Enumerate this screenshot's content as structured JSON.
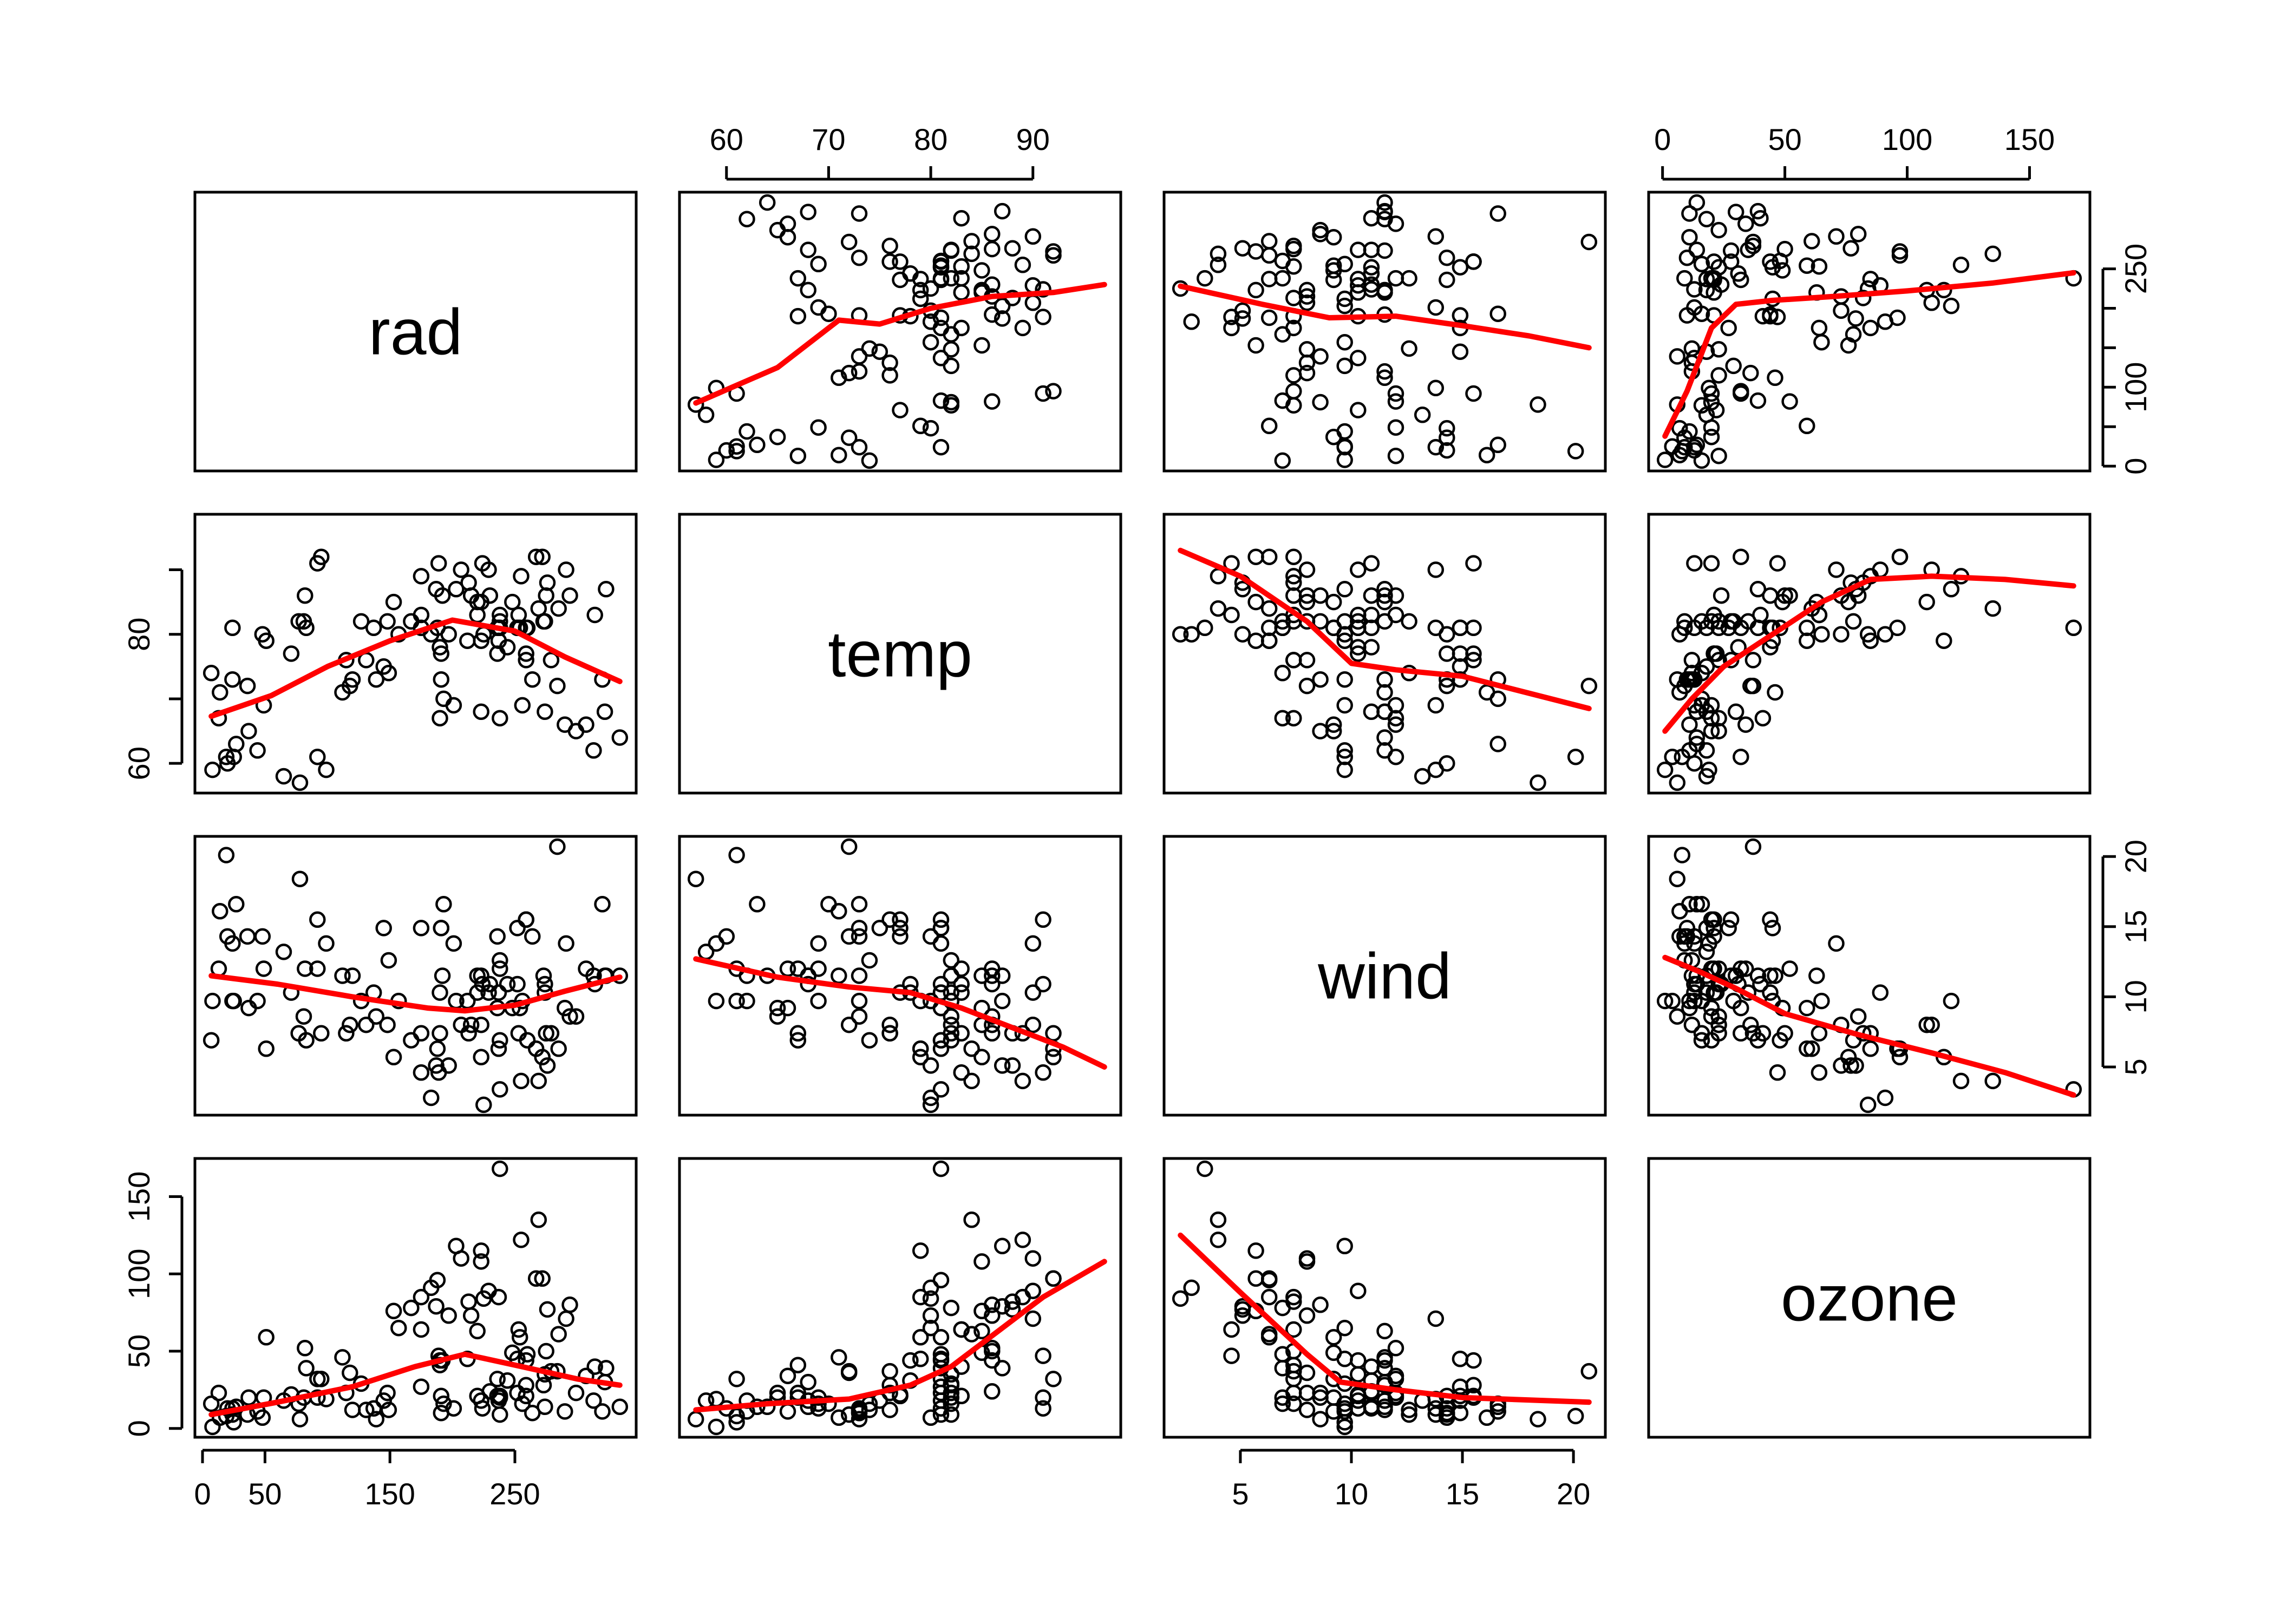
{
  "chart_data": {
    "type": "scatter",
    "subtype": "scatterplot-matrix",
    "title": "",
    "variables": [
      "rad",
      "temp",
      "wind",
      "ozone"
    ],
    "smoother": "lowess",
    "smoother_color": "#ff0000",
    "point_style": "open-circle",
    "ranges": {
      "rad": [
        7,
        334
      ],
      "temp": [
        57,
        97
      ],
      "wind": [
        2.3,
        20.7
      ],
      "ozone": [
        1,
        168
      ]
    },
    "ticks": {
      "rad": [
        0,
        50,
        150,
        250
      ],
      "temp": [
        60,
        70,
        80,
        90
      ],
      "wind": [
        5,
        10,
        15,
        20
      ],
      "ozone": [
        0,
        50,
        100,
        150
      ]
    },
    "panel_ticks": {
      "rad_temp": [
        60,
        80
      ],
      "ozone_rad": [
        0,
        100,
        250
      ]
    },
    "axis_placement": {
      "rad": {
        "x": "bottom",
        "y": "right"
      },
      "temp": {
        "x": "top",
        "y": "left"
      },
      "wind": {
        "x": "bottom",
        "y": "right"
      },
      "ozone": {
        "x": "top",
        "y": "left"
      }
    },
    "data": [
      [
        190,
        67,
        7.4,
        41
      ],
      [
        118,
        72,
        8.0,
        36
      ],
      [
        149,
        74,
        12.6,
        12
      ],
      [
        313,
        62,
        11.5,
        18
      ],
      [
        299,
        65,
        8.6,
        23
      ],
      [
        99,
        59,
        13.8,
        19
      ],
      [
        19,
        61,
        20.1,
        8
      ],
      [
        256,
        69,
        9.7,
        16
      ],
      [
        290,
        66,
        9.2,
        11
      ],
      [
        274,
        68,
        10.9,
        14
      ],
      [
        65,
        58,
        13.2,
        18
      ],
      [
        334,
        64,
        11.5,
        14
      ],
      [
        307,
        66,
        12.0,
        34
      ],
      [
        78,
        57,
        18.4,
        6
      ],
      [
        322,
        68,
        11.5,
        30
      ],
      [
        44,
        62,
        9.7,
        11
      ],
      [
        8,
        59,
        9.7,
        1
      ],
      [
        320,
        73,
        16.6,
        11
      ],
      [
        25,
        61,
        9.7,
        4
      ],
      [
        92,
        61,
        12.0,
        32
      ],
      [
        13,
        67,
        12.0,
        23
      ],
      [
        252,
        81,
        14.9,
        45
      ],
      [
        223,
        79,
        5.7,
        115
      ],
      [
        279,
        76,
        7.4,
        37
      ],
      [
        127,
        82,
        9.7,
        29
      ],
      [
        291,
        90,
        13.8,
        71
      ],
      [
        323,
        87,
        11.5,
        39
      ],
      [
        148,
        82,
        8.0,
        23
      ],
      [
        191,
        77,
        14.9,
        21
      ],
      [
        284,
        72,
        20.7,
        37
      ],
      [
        37,
        65,
        9.2,
        20
      ],
      [
        120,
        73,
        11.5,
        12
      ],
      [
        137,
        81,
        10.3,
        13
      ],
      [
        269,
        84,
        4.0,
        135
      ],
      [
        248,
        85,
        9.2,
        49
      ],
      [
        236,
        81,
        9.2,
        32
      ],
      [
        175,
        83,
        4.6,
        64
      ],
      [
        314,
        83,
        10.9,
        40
      ],
      [
        276,
        88,
        5.1,
        77
      ],
      [
        267,
        92,
        6.3,
        97
      ],
      [
        272,
        92,
        5.7,
        97
      ],
      [
        175,
        89,
        7.4,
        85
      ],
      [
        264,
        73,
        14.3,
        10
      ],
      [
        175,
        81,
        14.9,
        27
      ],
      [
        48,
        80,
        14.3,
        7
      ],
      [
        260,
        81,
        6.9,
        48
      ],
      [
        274,
        82,
        10.3,
        35
      ],
      [
        285,
        84,
        6.3,
        61
      ],
      [
        187,
        87,
        5.1,
        79
      ],
      [
        220,
        85,
        11.5,
        63
      ],
      [
        7,
        74,
        6.9,
        16
      ],
      [
        294,
        86,
        8.6,
        80
      ],
      [
        223,
        85,
        8.0,
        108
      ],
      [
        81,
        82,
        8.6,
        20
      ],
      [
        82,
        86,
        12.0,
        52
      ],
      [
        213,
        88,
        7.4,
        82
      ],
      [
        275,
        86,
        7.4,
        50
      ],
      [
        253,
        83,
        7.4,
        64
      ],
      [
        254,
        81,
        9.2,
        59
      ],
      [
        83,
        81,
        6.9,
        39
      ],
      [
        24,
        81,
        13.8,
        9
      ],
      [
        77,
        82,
        7.4,
        16
      ],
      [
        255,
        89,
        4.0,
        122
      ],
      [
        229,
        90,
        10.3,
        89
      ],
      [
        207,
        90,
        8.0,
        110
      ],
      [
        192,
        86,
        11.5,
        44
      ],
      [
        273,
        82,
        11.5,
        28
      ],
      [
        157,
        80,
        9.7,
        65
      ],
      [
        71,
        77,
        10.3,
        22
      ],
      [
        51,
        79,
        6.3,
        59
      ],
      [
        115,
        76,
        7.4,
        23
      ],
      [
        244,
        78,
        10.9,
        31
      ],
      [
        190,
        78,
        10.3,
        44
      ],
      [
        259,
        77,
        15.5,
        21
      ],
      [
        36,
        72,
        14.3,
        9
      ],
      [
        212,
        79,
        9.7,
        45
      ],
      [
        238,
        81,
        3.4,
        168
      ],
      [
        215,
        86,
        8.0,
        73
      ],
      [
        153,
        85,
        5.7,
        76
      ],
      [
        203,
        87,
        9.7,
        118
      ],
      [
        225,
        80,
        2.3,
        84
      ],
      [
        237,
        79,
        6.3,
        85
      ],
      [
        188,
        81,
        6.3,
        96
      ],
      [
        167,
        82,
        6.9,
        78
      ],
      [
        197,
        80,
        5.1,
        73
      ],
      [
        183,
        80,
        2.8,
        91
      ],
      [
        189,
        91,
        4.6,
        47
      ],
      [
        95,
        92,
        7.4,
        32
      ],
      [
        92,
        91,
        15.5,
        20
      ],
      [
        252,
        81,
        10.9,
        23
      ],
      [
        220,
        83,
        10.3,
        21
      ],
      [
        230,
        86,
        10.9,
        24
      ],
      [
        259,
        81,
        15.5,
        44
      ],
      [
        236,
        77,
        14.3,
        21
      ],
      [
        259,
        76,
        15.5,
        28
      ],
      [
        238,
        82,
        12.6,
        9
      ],
      [
        24,
        73,
        9.7,
        13
      ],
      [
        112,
        71,
        11.5,
        46
      ],
      [
        237,
        81,
        10.3,
        18
      ],
      [
        224,
        91,
        10.9,
        13
      ],
      [
        27,
        63,
        16.6,
        14
      ],
      [
        238,
        67,
        6.9,
        20
      ],
      [
        201,
        69,
        13.8,
        13
      ],
      [
        238,
        83,
        12.0,
        21
      ],
      [
        14,
        71,
        16.1,
        7
      ],
      [
        139,
        73,
        8.6,
        6
      ],
      [
        49,
        69,
        12.0,
        20
      ],
      [
        20,
        60,
        14.3,
        13
      ],
      [
        193,
        70,
        16.6,
        16
      ],
      [
        145,
        75,
        14.9,
        18
      ],
      [
        191,
        73,
        14.9,
        10
      ],
      [
        131,
        76,
        8.0,
        12
      ],
      [
        223,
        68,
        11.5,
        18
      ]
    ],
    "smooth_paths": {
      "rad_temp": [
        [
          7,
          67.3
        ],
        [
          55,
          70.5
        ],
        [
          100,
          75
        ],
        [
          150,
          79
        ],
        [
          200,
          82.2
        ],
        [
          250,
          80.5
        ],
        [
          290,
          76.5
        ],
        [
          334,
          72.7
        ]
      ],
      "rad_wind": [
        [
          7,
          11.5
        ],
        [
          60,
          10.9
        ],
        [
          120,
          10
        ],
        [
          180,
          9.2
        ],
        [
          210,
          9.0
        ],
        [
          250,
          9.4
        ],
        [
          290,
          10.4
        ],
        [
          334,
          11.4
        ]
      ],
      "rad_ozone": [
        [
          7,
          9
        ],
        [
          60,
          17
        ],
        [
          120,
          27
        ],
        [
          170,
          40
        ],
        [
          210,
          48
        ],
        [
          250,
          41
        ],
        [
          300,
          32
        ],
        [
          334,
          28
        ]
      ],
      "temp_rad": [
        [
          57,
          80
        ],
        [
          65,
          125
        ],
        [
          71,
          185
        ],
        [
          75,
          180
        ],
        [
          80,
          200
        ],
        [
          86,
          215
        ],
        [
          92,
          220
        ],
        [
          97,
          230
        ]
      ],
      "temp_wind": [
        [
          57,
          12.7
        ],
        [
          65,
          11.4
        ],
        [
          72,
          10.7
        ],
        [
          78,
          10.3
        ],
        [
          83,
          9.2
        ],
        [
          88,
          7.8
        ],
        [
          93,
          6.4
        ],
        [
          97,
          5.0
        ]
      ],
      "temp_ozone": [
        [
          57,
          12
        ],
        [
          64,
          16
        ],
        [
          72,
          19
        ],
        [
          78,
          28
        ],
        [
          82,
          40
        ],
        [
          86,
          60
        ],
        [
          91,
          85
        ],
        [
          97,
          108
        ]
      ],
      "wind_rad": [
        [
          2.3,
          228
        ],
        [
          6,
          205
        ],
        [
          9,
          188
        ],
        [
          12,
          190
        ],
        [
          15,
          178
        ],
        [
          18,
          165
        ],
        [
          20.7,
          150
        ]
      ],
      "wind_temp": [
        [
          2.3,
          93
        ],
        [
          5,
          89
        ],
        [
          8,
          82
        ],
        [
          10,
          75.5
        ],
        [
          12,
          74.5
        ],
        [
          15,
          73.5
        ],
        [
          20.7,
          68.5
        ]
      ],
      "wind_ozone": [
        [
          2.3,
          125
        ],
        [
          5,
          88
        ],
        [
          8,
          48
        ],
        [
          9.5,
          30
        ],
        [
          12,
          25
        ],
        [
          15,
          20
        ],
        [
          20.7,
          17
        ]
      ],
      "ozone_rad": [
        [
          1,
          38
        ],
        [
          10,
          95
        ],
        [
          20,
          175
        ],
        [
          30,
          205
        ],
        [
          45,
          210
        ],
        [
          70,
          215
        ],
        [
          100,
          222
        ],
        [
          135,
          232
        ],
        [
          168,
          245
        ]
      ],
      "ozone_temp": [
        [
          1,
          65
        ],
        [
          12,
          70
        ],
        [
          25,
          75
        ],
        [
          45,
          80
        ],
        [
          65,
          85
        ],
        [
          85,
          88.5
        ],
        [
          110,
          89
        ],
        [
          140,
          88.5
        ],
        [
          168,
          87.5
        ]
      ],
      "ozone_wind": [
        [
          1,
          12.8
        ],
        [
          15,
          11.8
        ],
        [
          30,
          10.6
        ],
        [
          50,
          8.8
        ],
        [
          80,
          7.3
        ],
        [
          110,
          6.0
        ],
        [
          140,
          4.6
        ],
        [
          168,
          3.0
        ]
      ]
    }
  }
}
